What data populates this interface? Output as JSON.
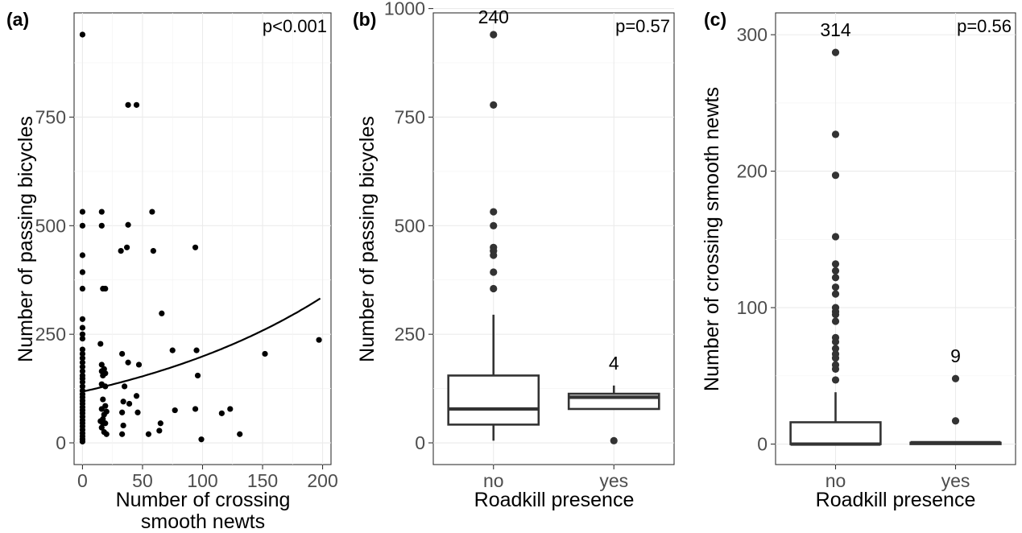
{
  "chart_data": [
    {
      "type": "scatter",
      "panel_label": "(a)",
      "annotation": "p<0.001",
      "xlabel_lines": [
        "Number of crossing",
        "smooth newts"
      ],
      "ylabel": "Number of passing bicycles",
      "xlim": [
        -7,
        207
      ],
      "ylim": [
        -50,
        990
      ],
      "x_ticks": [
        0,
        50,
        100,
        150,
        200
      ],
      "y_ticks": [
        0,
        250,
        500,
        750
      ],
      "grid": true,
      "fit_curve": {
        "type": "exponential",
        "intercept": 118,
        "slope_log": 0.00523,
        "x_range": [
          0,
          198
        ]
      },
      "points": [
        [
          0,
          940
        ],
        [
          0,
          532
        ],
        [
          0,
          500
        ],
        [
          0,
          432
        ],
        [
          0,
          393
        ],
        [
          0,
          355
        ],
        [
          0,
          285
        ],
        [
          0,
          265
        ],
        [
          0,
          250
        ],
        [
          0,
          240
        ],
        [
          0,
          215
        ],
        [
          0,
          205
        ],
        [
          0,
          195
        ],
        [
          0,
          185
        ],
        [
          0,
          175
        ],
        [
          0,
          165
        ],
        [
          0,
          155
        ],
        [
          0,
          148
        ],
        [
          0,
          140
        ],
        [
          0,
          130
        ],
        [
          0,
          120
        ],
        [
          0,
          112
        ],
        [
          0,
          105
        ],
        [
          0,
          97
        ],
        [
          0,
          90
        ],
        [
          0,
          82
        ],
        [
          0,
          75
        ],
        [
          0,
          68
        ],
        [
          0,
          60
        ],
        [
          0,
          52
        ],
        [
          0,
          45
        ],
        [
          0,
          38
        ],
        [
          0,
          30
        ],
        [
          0,
          22
        ],
        [
          0,
          15
        ],
        [
          0,
          8
        ],
        [
          0,
          3
        ],
        [
          16,
          532
        ],
        [
          16,
          500
        ],
        [
          17,
          355
        ],
        [
          19,
          355
        ],
        [
          15,
          228
        ],
        [
          16,
          180
        ],
        [
          16,
          165
        ],
        [
          18,
          170
        ],
        [
          17,
          155
        ],
        [
          19,
          160
        ],
        [
          16,
          135
        ],
        [
          19,
          130
        ],
        [
          17,
          100
        ],
        [
          19,
          85
        ],
        [
          16,
          78
        ],
        [
          18,
          65
        ],
        [
          20,
          72
        ],
        [
          17,
          55
        ],
        [
          15,
          50
        ],
        [
          19,
          45
        ],
        [
          16,
          35
        ],
        [
          18,
          25
        ],
        [
          20,
          20
        ],
        [
          17,
          45
        ],
        [
          38,
          778
        ],
        [
          45,
          778
        ],
        [
          38,
          502
        ],
        [
          32,
          442
        ],
        [
          37,
          450
        ],
        [
          58,
          532
        ],
        [
          59,
          442
        ],
        [
          66,
          298
        ],
        [
          33,
          205
        ],
        [
          38,
          185
        ],
        [
          47,
          180
        ],
        [
          35,
          130
        ],
        [
          34,
          95
        ],
        [
          39,
          90
        ],
        [
          45,
          108
        ],
        [
          33,
          70
        ],
        [
          46,
          70
        ],
        [
          34,
          40
        ],
        [
          33,
          20
        ],
        [
          55,
          20
        ],
        [
          64,
          28
        ],
        [
          65,
          45
        ],
        [
          75,
          213
        ],
        [
          77,
          75
        ],
        [
          94,
          450
        ],
        [
          95,
          213
        ],
        [
          96,
          155
        ],
        [
          94,
          78
        ],
        [
          99,
          8
        ],
        [
          116,
          68
        ],
        [
          123,
          78
        ],
        [
          131,
          20
        ],
        [
          152,
          205
        ],
        [
          197,
          237
        ]
      ]
    },
    {
      "type": "box",
      "panel_label": "(b)",
      "annotation": "p=0.57",
      "xlabel": "Roadkill presence",
      "ylabel": "Number of passing bicycles",
      "ylim": [
        -50,
        990
      ],
      "y_ticks": [
        0,
        250,
        500,
        750,
        1000
      ],
      "categories": [
        "no",
        "yes"
      ],
      "counts": [
        "240",
        "4"
      ],
      "grid": true,
      "boxes": [
        {
          "category": "no",
          "q1": 42,
          "median": 78,
          "q3": 155,
          "whisker_low": 5,
          "whisker_high": 295,
          "outliers": [
            940,
            778,
            532,
            500,
            450,
            442,
            432,
            393,
            355
          ]
        },
        {
          "category": "yes",
          "q1": 78,
          "median": 105,
          "q3": 113,
          "whisker_low": 78,
          "whisker_high": 132,
          "outliers": [
            5
          ]
        }
      ]
    },
    {
      "type": "box",
      "panel_label": "(c)",
      "annotation": "p=0.56",
      "xlabel": "Roadkill presence",
      "ylabel": "Number of crossing smooth newts",
      "ylim": [
        -15,
        316
      ],
      "y_ticks": [
        0,
        100,
        200,
        300
      ],
      "categories": [
        "no",
        "yes"
      ],
      "counts": [
        "314",
        "9"
      ],
      "grid": true,
      "boxes": [
        {
          "category": "no",
          "q1": 0,
          "median": 0,
          "q3": 16,
          "whisker_low": 0,
          "whisker_high": 38,
          "outliers": [
            287,
            227,
            197,
            152,
            132,
            127,
            122,
            115,
            110,
            100,
            97,
            95,
            90,
            78,
            75,
            70,
            66,
            63,
            58,
            55,
            47
          ]
        },
        {
          "category": "yes",
          "q1": 0,
          "median": 1,
          "q3": 1,
          "whisker_low": 0,
          "whisker_high": 1,
          "outliers": [
            48,
            17
          ]
        }
      ]
    }
  ]
}
